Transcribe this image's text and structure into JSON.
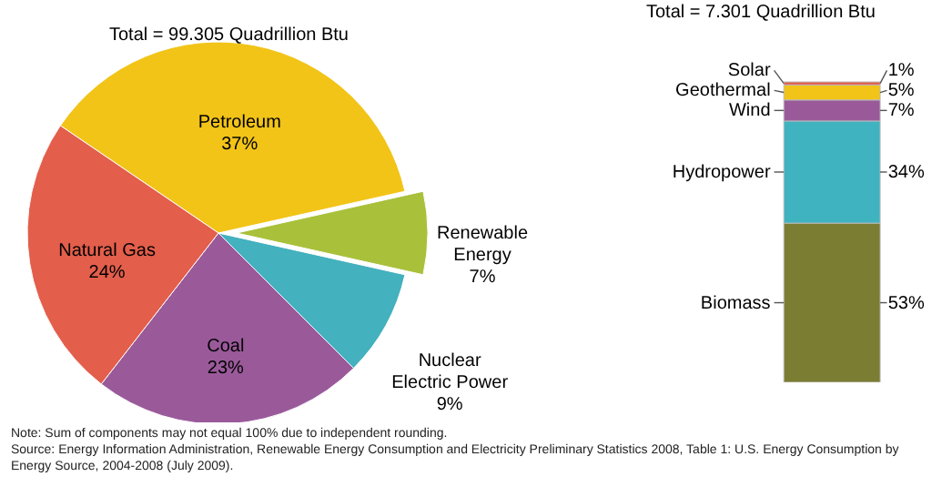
{
  "chart_data": [
    {
      "type": "pie",
      "title": "Total = 99.305 Quadrillion Btu",
      "categories": [
        "Petroleum",
        "Renewable Energy",
        "Nuclear Electric Power",
        "Coal",
        "Natural Gas"
      ],
      "values": [
        37,
        7,
        9,
        23,
        24
      ],
      "colors": [
        "#f2c418",
        "#a9c03a",
        "#43b1be",
        "#9a5a9a",
        "#e35e4b"
      ],
      "value_labels": [
        "37%",
        "7%",
        "9%",
        "23%",
        "24%"
      ],
      "annotations": [
        "Note: Sum of components may not equal 100% due to independent rounding.",
        "Source: Energy Information Administration, Renewable Energy Consumption and Electricity Preliminary Statistics 2008, Table 1: U.S. Energy Consumption by Energy Source, 2004-2008 (July 2009)."
      ]
    },
    {
      "type": "bar",
      "stacked": true,
      "title": "Total = 7.301 Quadrillion Btu",
      "categories": [
        null
      ],
      "series": [
        {
          "name": "Biomass",
          "color": "#7b7d33",
          "values": [
            53
          ],
          "value_labels": [
            "53%"
          ]
        },
        {
          "name": "Hydropower",
          "color": "#3fb3bf",
          "values": [
            34
          ],
          "value_labels": [
            "34%"
          ]
        },
        {
          "name": "Wind",
          "color": "#9a5a9a",
          "values": [
            7
          ],
          "value_labels": [
            "7%"
          ]
        },
        {
          "name": "Geothermal",
          "color": "#f2c418",
          "values": [
            5
          ],
          "value_labels": [
            "5%"
          ]
        },
        {
          "name": "Solar",
          "color": "#e35e4b",
          "values": [
            1
          ],
          "value_labels": [
            "1%"
          ]
        }
      ]
    }
  ]
}
